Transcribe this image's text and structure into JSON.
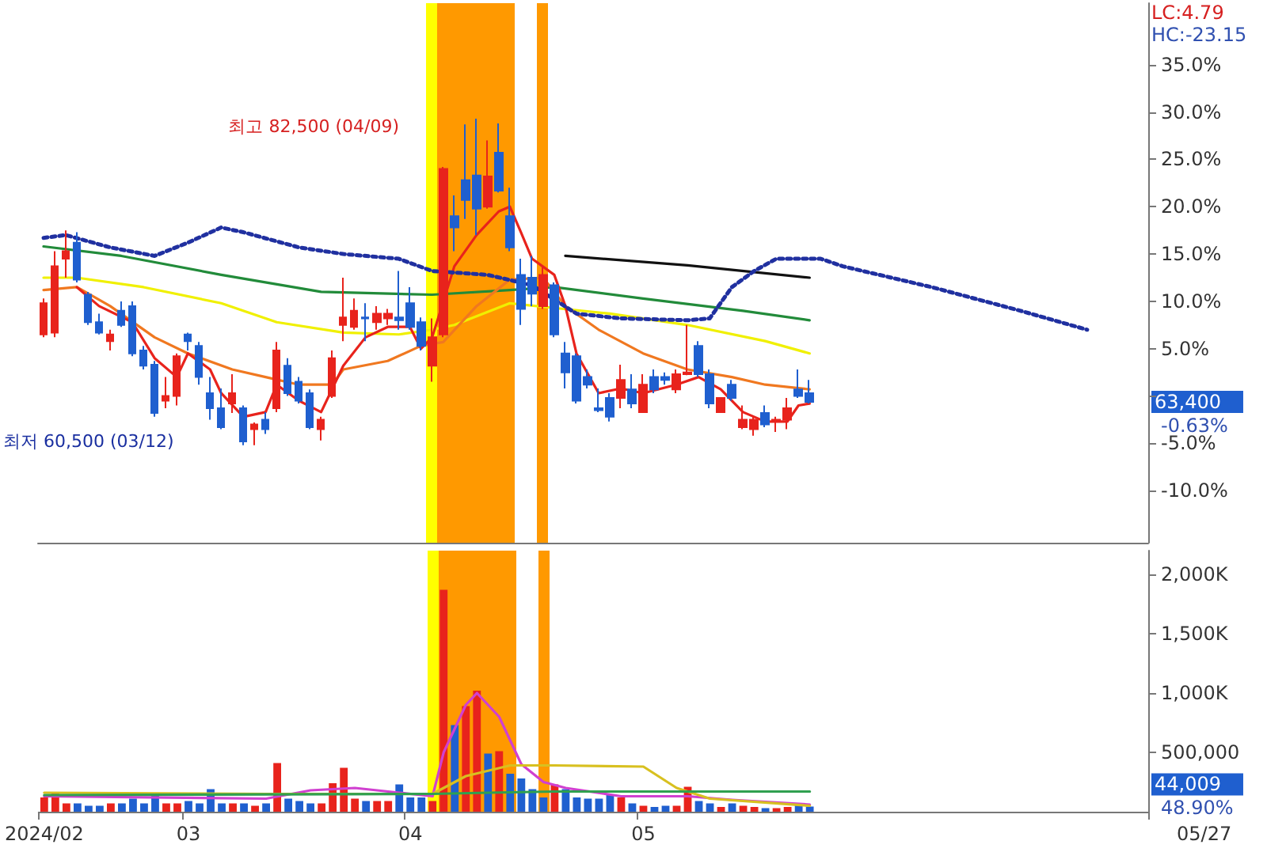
{
  "chart_data": [
    {
      "type": "candlestick",
      "ylim": [
        -15.5,
        41.5
      ],
      "tick_labels": "y",
      "categories": [
        "2024/02",
        null,
        null,
        null,
        null,
        null,
        null,
        null,
        null,
        null,
        null,
        null,
        null,
        "03",
        null,
        null,
        null,
        null,
        null,
        null,
        null,
        null,
        null,
        null,
        null,
        null,
        null,
        null,
        null,
        null,
        null,
        null,
        null,
        "04",
        null,
        null,
        null,
        null,
        null,
        null,
        null,
        null,
        null,
        null,
        null,
        null,
        null,
        null,
        null,
        null,
        null,
        null,
        null,
        null,
        "05",
        null,
        null,
        null,
        null,
        null,
        null,
        null,
        null,
        null,
        null,
        null,
        null,
        null,
        null,
        null,
        null,
        null,
        null,
        null,
        null,
        null,
        null,
        null,
        null,
        null,
        null,
        null,
        null,
        null,
        null,
        null,
        null,
        null,
        null,
        null,
        null,
        null,
        null,
        null,
        null,
        null,
        null,
        null,
        null,
        null
      ],
      "yticks": [
        {
          "value": -10,
          "label": "-10.0%"
        },
        {
          "value": -5,
          "label": "-5.0%"
        },
        {
          "value": 0,
          "label": null
        },
        {
          "value": 5,
          "label": "5.0%"
        },
        {
          "value": 10,
          "label": "10.0%"
        },
        {
          "value": 15,
          "label": "15.0%"
        },
        {
          "value": 20,
          "label": "20.0%"
        },
        {
          "value": 25,
          "label": "25.0%"
        },
        {
          "value": 30,
          "label": "30.0%"
        },
        {
          "value": 35,
          "label": "35.0%"
        }
      ],
      "series": [
        {
          "ohlc": [
            [
              6.5,
              10.3,
              6.2,
              9.8
            ],
            [
              6.7,
              15.3,
              6.2,
              13.7
            ],
            [
              14.5,
              17.5,
              12.5,
              15.3
            ],
            [
              16.2,
              17.3,
              12.0,
              12.3
            ],
            [
              10.7,
              11.0,
              7.5,
              7.8
            ],
            [
              7.8,
              8.7,
              6.5,
              6.7
            ],
            [
              5.8,
              7.0,
              4.8,
              6.5
            ],
            [
              9.0,
              10.0,
              7.3,
              7.5
            ],
            [
              9.5,
              10.0,
              4.2,
              4.5
            ],
            [
              4.8,
              5.3,
              2.8,
              3.2
            ],
            [
              3.3,
              3.7,
              -2.2,
              -1.8
            ],
            [
              -0.5,
              2.0,
              -1.3,
              0
            ],
            [
              0,
              4.5,
              -1.0,
              4.2
            ],
            [
              6.5,
              6.7,
              4.8,
              5.8
            ],
            [
              5.3,
              5.7,
              1.2,
              2.0
            ],
            [
              0.3,
              2.0,
              -2.5,
              -1.3
            ],
            [
              -1.3,
              0.8,
              -3.5,
              -3.3
            ],
            [
              -0.8,
              2.3,
              -1.8,
              0.3
            ],
            [
              -1.3,
              -1.0,
              -5.2,
              -4.8
            ],
            [
              -3.5,
              -2.8,
              -5.2,
              -3.0
            ],
            [
              -2.5,
              -1.7,
              -4.0,
              -3.5
            ],
            [
              -1.3,
              5.7,
              -1.7,
              4.8
            ],
            [
              3.2,
              4.0,
              0,
              0.3
            ],
            [
              1.5,
              2.0,
              -0.8,
              -0.5
            ],
            [
              0.3,
              0.7,
              -3.5,
              -3.3
            ],
            [
              -3.5,
              -2.2,
              -4.7,
              -2.5
            ],
            [
              0,
              4.8,
              -0.2,
              4.0
            ],
            [
              7.5,
              12.5,
              5.8,
              8.3
            ],
            [
              7.3,
              10.3,
              7.0,
              9.0
            ],
            [
              8.3,
              9.8,
              5.8,
              8.2
            ],
            [
              7.8,
              9.5,
              7.0,
              8.7
            ],
            [
              8.2,
              9.2,
              7.5,
              8.7
            ],
            [
              8.3,
              13.2,
              7.0,
              8.0
            ],
            [
              9.8,
              11.5,
              7.0,
              7.3
            ],
            [
              7.8,
              8.3,
              4.8,
              5.3
            ],
            [
              3.2,
              8.2,
              1.5,
              6.2
            ],
            [
              6.5,
              24.2,
              6.2,
              24.0
            ],
            [
              19.0,
              21.2,
              15.3,
              17.8
            ],
            [
              22.8,
              28.7,
              18.7,
              20.7
            ],
            [
              23.3,
              29.3,
              17.0,
              19.8
            ],
            [
              20.0,
              27.0,
              19.8,
              23.2
            ],
            [
              25.7,
              28.8,
              21.5,
              21.7
            ],
            [
              19.0,
              22.0,
              15.3,
              15.7
            ],
            [
              12.8,
              14.5,
              7.5,
              9.2
            ],
            [
              12.5,
              14.8,
              9.5,
              10.8
            ],
            [
              9.5,
              13.7,
              9.2,
              12.8
            ],
            [
              11.7,
              12.0,
              6.2,
              6.5
            ],
            [
              4.5,
              5.7,
              0.8,
              2.5
            ],
            [
              4.2,
              4.5,
              -0.8,
              -0.5
            ],
            [
              2.0,
              2.8,
              0.8,
              1.2
            ],
            [
              -1.3,
              0.8,
              -1.7,
              -1.5
            ],
            [
              -0.2,
              0.3,
              -2.7,
              -2.2
            ],
            [
              -0.2,
              3.3,
              -1.3,
              1.7
            ],
            [
              0.7,
              2.3,
              -1.3,
              -0.8
            ],
            [
              -1.7,
              2.3,
              -1.7,
              1.2
            ],
            [
              2.0,
              2.8,
              0.3,
              0.7
            ],
            [
              2.0,
              2.5,
              1.2,
              1.7
            ],
            [
              0.7,
              2.8,
              0.3,
              2.3
            ],
            [
              2.3,
              7.5,
              2.2,
              2.5
            ],
            [
              5.3,
              5.8,
              2.0,
              2.3
            ],
            [
              2.3,
              2.8,
              -1.3,
              -0.8
            ],
            [
              -1.7,
              -0.2,
              -1.8,
              -0.2
            ],
            [
              1.2,
              1.7,
              -0.5,
              -0.2
            ],
            [
              -3.3,
              -1.0,
              -3.5,
              -2.5
            ],
            [
              -3.5,
              -2.2,
              -4.2,
              -2.5
            ],
            [
              -1.8,
              -1.0,
              -3.3,
              -3.0
            ],
            [
              -2.7,
              -2.2,
              -3.8,
              -2.5
            ],
            [
              -2.5,
              -0.2,
              -3.5,
              -1.3
            ],
            [
              0.7,
              2.8,
              -0.2,
              0
            ],
            [
              0.3,
              1.7,
              -0.8,
              -0.63
            ],
            null,
            null,
            null,
            null,
            null,
            null,
            null,
            null,
            null,
            null,
            null,
            null,
            null,
            null,
            null,
            null,
            null,
            null,
            null,
            null,
            null,
            null,
            null,
            null,
            null,
            null,
            null,
            null,
            null,
            null
          ],
          "colors": [
            "#e8231c",
            "#e8231c",
            "#e8231c",
            "#1f5fcf",
            "#1f5fcf",
            "#1f5fcf",
            "#e8231c",
            "#1f5fcf",
            "#1f5fcf",
            "#1f5fcf",
            "#1f5fcf",
            "#e8231c",
            "#e8231c",
            "#1f5fcf",
            "#1f5fcf",
            "#1f5fcf",
            "#1f5fcf",
            "#e8231c",
            "#1f5fcf",
            "#e8231c",
            "#1f5fcf",
            "#e8231c",
            "#1f5fcf",
            "#1f5fcf",
            "#1f5fcf",
            "#e8231c",
            "#e8231c",
            "#e8231c",
            "#e8231c",
            "#1f5fcf",
            "#e8231c",
            "#e8231c",
            "#1f5fcf",
            "#1f5fcf",
            "#1f5fcf",
            "#e8231c",
            "#e8231c",
            "#1f5fcf",
            "#1f5fcf",
            "#1f5fcf",
            "#e8231c",
            "#1f5fcf",
            "#1f5fcf",
            "#1f5fcf",
            "#1f5fcf",
            "#e8231c",
            "#1f5fcf",
            "#1f5fcf",
            "#1f5fcf",
            "#1f5fcf",
            "#1f5fcf",
            "#1f5fcf",
            "#e8231c",
            "#1f5fcf",
            "#e8231c",
            "#1f5fcf",
            "#1f5fcf",
            "#e8231c",
            "#e8231c",
            "#1f5fcf",
            "#1f5fcf",
            "#e8231c",
            "#1f5fcf",
            "#e8231c",
            "#e8231c",
            "#1f5fcf",
            "#e8231c",
            "#e8231c",
            "#1f5fcf",
            "#1f5fcf",
            null,
            null,
            null,
            null,
            null,
            null,
            null,
            null,
            null,
            null,
            null,
            null,
            null,
            null,
            null,
            null,
            null,
            null,
            null,
            null,
            null,
            null,
            null,
            null,
            null,
            null,
            null,
            null,
            null,
            null
          ]
        },
        {
          "type": "line",
          "color": "#228b3a",
          "values": [
            15.8,
            null,
            null,
            null,
            null,
            null,
            null,
            14.8,
            null,
            null,
            null,
            null,
            null,
            null,
            null,
            null,
            12.8,
            null,
            null,
            null,
            null,
            null,
            null,
            null,
            null,
            11.0,
            null,
            null,
            null,
            null,
            null,
            null,
            null,
            null,
            null,
            10.7,
            null,
            null,
            null,
            null,
            null,
            null,
            11.2,
            null,
            null,
            null,
            11.5,
            null,
            null,
            null,
            null,
            null,
            null,
            null,
            10.3,
            null,
            null,
            null,
            null,
            null,
            null,
            null,
            null,
            9.0,
            null,
            null,
            null,
            null,
            null,
            8.0,
            null,
            null,
            null,
            null,
            null,
            null,
            null,
            null,
            null,
            null,
            null,
            null,
            null,
            null,
            null,
            null,
            null,
            null,
            null,
            null,
            null,
            null,
            null,
            null,
            null,
            null,
            null,
            null,
            null,
            null
          ]
        },
        {
          "type": "line",
          "color": "#f0f000",
          "values": [
            12.5,
            null,
            null,
            12.5,
            null,
            null,
            null,
            null,
            null,
            11.5,
            null,
            null,
            null,
            null,
            null,
            null,
            9.8,
            null,
            null,
            null,
            null,
            7.8,
            null,
            null,
            null,
            null,
            null,
            6.7,
            null,
            null,
            null,
            null,
            6.5,
            null,
            null,
            7.0,
            null,
            7.5,
            null,
            null,
            null,
            null,
            9.8,
            null,
            null,
            null,
            9.3,
            null,
            null,
            null,
            null,
            8.7,
            null,
            null,
            null,
            null,
            null,
            null,
            7.5,
            null,
            null,
            null,
            null,
            null,
            null,
            5.8,
            null,
            null,
            null,
            4.5,
            null,
            null,
            null,
            null,
            null,
            null,
            null,
            null,
            null,
            null,
            null,
            null,
            null,
            null,
            null,
            null,
            null,
            null,
            null,
            null,
            null,
            null,
            null,
            null,
            null,
            null,
            null,
            null,
            null,
            null
          ]
        },
        {
          "type": "line",
          "color": "#f07820",
          "values": [
            11.2,
            null,
            null,
            11.5,
            null,
            null,
            9.5,
            null,
            null,
            null,
            6.2,
            null,
            null,
            4.5,
            null,
            null,
            null,
            2.8,
            null,
            null,
            2.0,
            null,
            null,
            1.2,
            null,
            null,
            1.2,
            2.8,
            null,
            null,
            null,
            3.7,
            null,
            null,
            5.3,
            null,
            5.7,
            null,
            null,
            9.5,
            null,
            null,
            12.3,
            null,
            null,
            12.5,
            null,
            9.5,
            null,
            null,
            7.0,
            null,
            null,
            null,
            4.5,
            null,
            null,
            null,
            2.8,
            null,
            null,
            null,
            2.0,
            null,
            null,
            1.2,
            null,
            null,
            null,
            0.7,
            null,
            null,
            null,
            null,
            null,
            null,
            null,
            null,
            null,
            null,
            null,
            null,
            null,
            null,
            null,
            null,
            null,
            null,
            null,
            null,
            null,
            null,
            null,
            null,
            null,
            null,
            null,
            null,
            null,
            null
          ]
        },
        {
          "type": "line",
          "color": "#e8231c",
          "values": [
            null,
            null,
            null,
            11.5,
            null,
            9.5,
            null,
            null,
            7.8,
            null,
            4.0,
            null,
            2.0,
            4.5,
            null,
            2.8,
            0.3,
            null,
            -2.2,
            null,
            -1.7,
            1.2,
            null,
            -0.5,
            null,
            -1.7,
            null,
            3.2,
            null,
            6.2,
            null,
            7.3,
            null,
            7.3,
            5.0,
            6.2,
            null,
            13.7,
            null,
            17.0,
            null,
            19.5,
            20.0,
            17.3,
            14.5,
            null,
            12.8,
            9.5,
            4.5,
            null,
            0.3,
            null,
            0.8,
            null,
            0.3,
            null,
            null,
            1.2,
            null,
            2.0,
            null,
            0.7,
            null,
            -1.7,
            null,
            -2.7,
            null,
            -2.7,
            -1.0,
            -0.8,
            null,
            null,
            null,
            null,
            null,
            null,
            null,
            null,
            null,
            null,
            null,
            null,
            null,
            null,
            null,
            null,
            null,
            null,
            null,
            null,
            null,
            null,
            null,
            null,
            null,
            null,
            null,
            null,
            null,
            null
          ]
        },
        {
          "type": "line",
          "color": "#111111",
          "values": [
            null,
            null,
            null,
            null,
            null,
            null,
            null,
            null,
            null,
            null,
            null,
            null,
            null,
            null,
            null,
            null,
            null,
            null,
            null,
            null,
            null,
            null,
            null,
            null,
            null,
            null,
            null,
            null,
            null,
            null,
            null,
            null,
            null,
            null,
            null,
            null,
            null,
            null,
            null,
            null,
            null,
            null,
            null,
            null,
            null,
            null,
            null,
            14.8,
            null,
            null,
            null,
            null,
            null,
            null,
            null,
            null,
            null,
            null,
            13.8,
            null,
            null,
            null,
            null,
            null,
            null,
            null,
            null,
            null,
            null,
            12.5,
            null,
            null,
            null,
            null,
            null,
            null,
            null,
            null,
            null,
            null,
            null,
            null,
            null,
            null,
            null,
            null,
            null,
            null,
            null,
            null,
            null,
            null,
            null,
            null,
            null,
            null,
            null,
            null,
            null,
            null
          ]
        },
        {
          "type": "line",
          "color": "#2030a0",
          "line_style": "dotted",
          "values": [
            16.7,
            null,
            17.0,
            null,
            null,
            null,
            15.7,
            null,
            null,
            null,
            14.8,
            null,
            null,
            16.2,
            null,
            null,
            17.8,
            null,
            17.3,
            null,
            null,
            null,
            null,
            15.7,
            null,
            null,
            null,
            15.0,
            null,
            null,
            null,
            null,
            14.5,
            null,
            null,
            13.2,
            null,
            null,
            null,
            null,
            12.8,
            null,
            null,
            null,
            11.7,
            null,
            null,
            null,
            8.7,
            null,
            null,
            null,
            8.2,
            null,
            null,
            null,
            null,
            null,
            8.0,
            null,
            8.2,
            null,
            11.5,
            null,
            13.2,
            null,
            14.5,
            null,
            null,
            null,
            14.5,
            null,
            13.7,
            null,
            null,
            null,
            null,
            null,
            null,
            null,
            11.5,
            null,
            null,
            null,
            null,
            null,
            null,
            null,
            9.0,
            null,
            null,
            null,
            null,
            null,
            7.0,
            null,
            null,
            null,
            null,
            null
          ]
        }
      ],
      "annotations": [
        "최고 82,500 (04/09)",
        "최저 60,500 (03/12)",
        "LC:4.79",
        "HC:-23.15",
        "63,400",
        "-0.63%"
      ]
    },
    {
      "type": "bar",
      "ylim": [
        0,
        2200000
      ],
      "categories": [
        "2024/02",
        null,
        null,
        null,
        null,
        null,
        null,
        null,
        null,
        null,
        null,
        null,
        null,
        "03",
        null,
        null,
        null,
        null,
        null,
        null,
        null,
        null,
        null,
        null,
        null,
        null,
        null,
        null,
        null,
        null,
        null,
        null,
        null,
        "04",
        null,
        null,
        null,
        null,
        null,
        null,
        null,
        null,
        null,
        null,
        null,
        null,
        null,
        null,
        null,
        null,
        null,
        null,
        null,
        null,
        "05",
        null,
        null,
        null,
        null,
        null,
        null,
        null,
        null,
        null,
        null,
        null,
        null,
        null,
        null,
        null,
        null,
        null,
        null,
        null,
        null,
        null,
        null,
        null,
        null,
        null,
        null,
        null,
        null,
        null,
        null,
        null,
        null,
        null,
        null,
        null,
        null,
        null,
        null,
        null,
        null,
        null,
        null,
        null,
        null,
        null
      ],
      "yticks": [
        {
          "value": 500000,
          "label": "500,000"
        },
        {
          "value": 1000000,
          "label": "1,000K"
        },
        {
          "value": 1500000,
          "label": "1,500K"
        },
        {
          "value": 2000000,
          "label": "2,000K"
        }
      ],
      "series": [
        {
          "values": [
            120000,
            160000,
            70000,
            70000,
            50000,
            50000,
            70000,
            70000,
            110000,
            70000,
            140000,
            70000,
            70000,
            90000,
            70000,
            190000,
            70000,
            70000,
            70000,
            50000,
            70000,
            410000,
            110000,
            90000,
            70000,
            70000,
            240000,
            370000,
            110000,
            90000,
            90000,
            90000,
            230000,
            120000,
            120000,
            90000,
            1870000,
            730000,
            890000,
            1020000,
            490000,
            510000,
            320000,
            280000,
            190000,
            120000,
            230000,
            190000,
            120000,
            110000,
            110000,
            140000,
            120000,
            70000,
            50000,
            40000,
            50000,
            50000,
            210000,
            90000,
            70000,
            40000,
            70000,
            50000,
            40000,
            30000,
            30000,
            40000,
            60000,
            44009,
            null,
            null,
            null,
            null,
            null,
            null,
            null,
            null,
            null,
            null,
            null,
            null,
            null,
            null,
            null,
            null,
            null,
            null,
            null,
            null,
            null,
            null,
            null,
            null,
            null,
            null,
            null,
            null,
            null,
            null
          ],
          "colors": [
            "#e8231c",
            "#e8231c",
            "#e8231c",
            "#1f5fcf",
            "#1f5fcf",
            "#1f5fcf",
            "#e8231c",
            "#1f5fcf",
            "#1f5fcf",
            "#1f5fcf",
            "#1f5fcf",
            "#e8231c",
            "#e8231c",
            "#1f5fcf",
            "#1f5fcf",
            "#1f5fcf",
            "#1f5fcf",
            "#e8231c",
            "#1f5fcf",
            "#e8231c",
            "#1f5fcf",
            "#e8231c",
            "#1f5fcf",
            "#1f5fcf",
            "#1f5fcf",
            "#e8231c",
            "#e8231c",
            "#e8231c",
            "#e8231c",
            "#1f5fcf",
            "#e8231c",
            "#e8231c",
            "#1f5fcf",
            "#1f5fcf",
            "#1f5fcf",
            "#e8231c",
            "#e8231c",
            "#1f5fcf",
            "#e8231c",
            "#e8231c",
            "#1f5fcf",
            "#e8231c",
            "#1f5fcf",
            "#1f5fcf",
            "#1f5fcf",
            "#1f5fcf",
            "#e8231c",
            "#1f5fcf",
            "#1f5fcf",
            "#1f5fcf",
            "#1f5fcf",
            "#1f5fcf",
            "#e8231c",
            "#1f5fcf",
            "#e8231c",
            "#1f5fcf",
            "#1f5fcf",
            "#e8231c",
            "#e8231c",
            "#1f5fcf",
            "#1f5fcf",
            "#e8231c",
            "#1f5fcf",
            "#e8231c",
            "#e8231c",
            "#1f5fcf",
            "#e8231c",
            "#e8231c",
            "#1f5fcf",
            "#1f5fcf",
            null,
            null,
            null,
            null,
            null,
            null,
            null,
            null,
            null,
            null,
            null,
            null,
            null,
            null,
            null,
            null,
            null,
            null,
            null,
            null,
            null,
            null,
            null,
            null,
            null,
            null,
            null,
            null,
            null,
            null
          ]
        },
        {
          "type": "line",
          "color": "#d040d0",
          "values": [
            130000,
            null,
            null,
            null,
            null,
            null,
            null,
            null,
            null,
            null,
            null,
            null,
            null,
            null,
            null,
            null,
            null,
            null,
            null,
            null,
            110000,
            null,
            null,
            null,
            180000,
            null,
            null,
            null,
            200000,
            null,
            null,
            null,
            160000,
            null,
            null,
            130000,
            500000,
            null,
            900000,
            1000000,
            null,
            800000,
            null,
            400000,
            null,
            250000,
            null,
            200000,
            null,
            null,
            null,
            null,
            130000,
            null,
            null,
            null,
            null,
            null,
            130000,
            null,
            null,
            null,
            100000,
            null,
            null,
            null,
            null,
            null,
            null,
            60000,
            null,
            null,
            null,
            null,
            null,
            null,
            null,
            null,
            null,
            null,
            null,
            null,
            null,
            null,
            null,
            null,
            null,
            null,
            null,
            null,
            null,
            null,
            null,
            null,
            null,
            null,
            null,
            null,
            null,
            null
          ]
        },
        {
          "type": "line",
          "color": "#d8c020",
          "values": [
            160000,
            null,
            null,
            null,
            null,
            null,
            null,
            null,
            null,
            null,
            null,
            null,
            null,
            null,
            null,
            null,
            null,
            null,
            null,
            null,
            150000,
            null,
            null,
            null,
            null,
            null,
            null,
            null,
            null,
            null,
            null,
            null,
            null,
            null,
            null,
            150000,
            null,
            null,
            300000,
            null,
            null,
            null,
            390000,
            null,
            null,
            null,
            390000,
            null,
            null,
            null,
            null,
            null,
            null,
            null,
            380000,
            null,
            null,
            200000,
            null,
            null,
            110000,
            null,
            null,
            null,
            null,
            null,
            null,
            null,
            null,
            50000,
            null,
            null,
            null,
            null,
            null,
            null,
            null,
            null,
            null,
            null,
            null,
            null,
            null,
            null,
            null,
            null,
            null,
            null,
            null,
            null,
            null,
            null,
            null,
            null,
            null,
            null,
            null,
            null,
            null,
            null
          ]
        },
        {
          "type": "line",
          "color": "#30a050",
          "values": [
            140000,
            null,
            null,
            null,
            null,
            null,
            null,
            null,
            null,
            null,
            null,
            null,
            null,
            null,
            null,
            null,
            null,
            null,
            null,
            null,
            null,
            null,
            null,
            null,
            null,
            null,
            null,
            null,
            null,
            null,
            null,
            null,
            null,
            null,
            null,
            150000,
            null,
            null,
            null,
            null,
            160000,
            null,
            null,
            null,
            null,
            null,
            170000,
            null,
            null,
            null,
            null,
            null,
            null,
            null,
            null,
            null,
            null,
            null,
            null,
            null,
            null,
            null,
            null,
            null,
            null,
            null,
            null,
            null,
            null,
            170000,
            null,
            null,
            null,
            null,
            null,
            null,
            null,
            null,
            null,
            null,
            null,
            null,
            null,
            null,
            null,
            null,
            null,
            null,
            null,
            null,
            null,
            null,
            null,
            null,
            null,
            null,
            null,
            null,
            null,
            null
          ]
        }
      ],
      "annotations": [
        "44,009",
        "48.90%",
        "05/27"
      ]
    }
  ]
}
